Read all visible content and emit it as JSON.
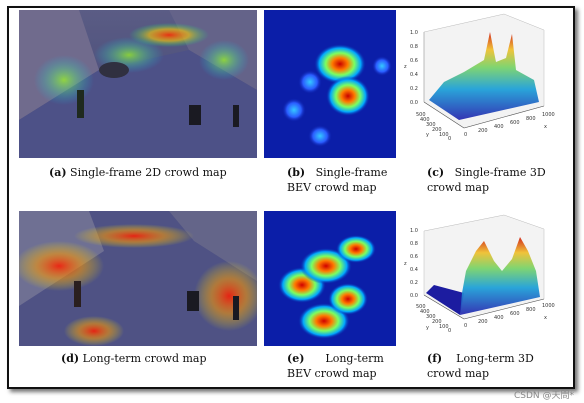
{
  "figure": {
    "panels": [
      {
        "label": "(a)",
        "caption_line1": "Single-frame 2D crowd map",
        "caption_line2": ""
      },
      {
        "label": "(b)",
        "caption_line1": "Single-frame",
        "caption_line2": "BEV crowd map"
      },
      {
        "label": "(c)",
        "caption_line1": "Single-frame   3D",
        "caption_line2": "crowd map"
      },
      {
        "label": "(d)",
        "caption_line1": "Long-term crowd map",
        "caption_line2": ""
      },
      {
        "label": "(e)",
        "caption_line1": "Long-term",
        "caption_line2": "BEV crowd map"
      },
      {
        "label": "(f)",
        "caption_line1": "Long-term   3D",
        "caption_line2": "crowd map"
      }
    ],
    "plot3d": {
      "z_ticks": [
        "0.0",
        "0.2",
        "0.4",
        "0.6",
        "0.8",
        "1.0"
      ],
      "y_ticks": [
        "0",
        "100",
        "200",
        "300",
        "400",
        "500"
      ],
      "x_ticks": [
        "0",
        "200",
        "400",
        "600",
        "800",
        "1000"
      ],
      "x_label": "x",
      "y_label": "y",
      "z_label": "z"
    },
    "colors": {
      "bev_background": "#0b1ea8",
      "frame_border": "#111111"
    }
  },
  "watermark": "CSDN @天問*"
}
